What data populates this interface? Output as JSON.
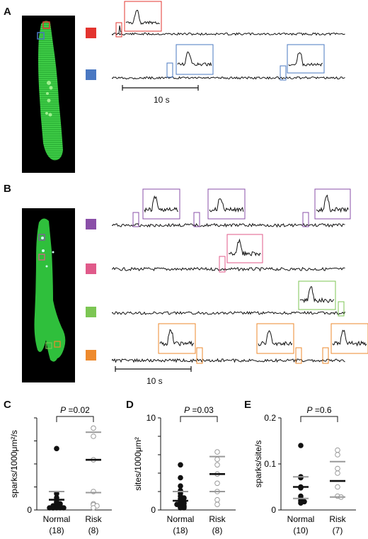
{
  "panels": {
    "A": "A",
    "B": "B",
    "C": "C",
    "D": "D",
    "E": "E"
  },
  "scale_bar": {
    "a": "10 s",
    "b": "10 s"
  },
  "colors": {
    "red": "#e3342f",
    "blue": "#4a78c2",
    "purple": "#8a4fa8",
    "pink": "#e05a8a",
    "green": "#7cc653",
    "orange": "#ee8a2d",
    "cell": "#2fbf3c"
  },
  "chart_data": [
    {
      "type": "scatter",
      "panel": "C",
      "ylabel": "sparks/1000μm²/s",
      "yticks": [
        "0",
        "",
        "",
        "",
        ""
      ],
      "ylim": [
        0,
        4.5
      ],
      "categories": [
        "Normal",
        "Risk"
      ],
      "counts": [
        "(18)",
        "(8)"
      ],
      "p_value_text": "=0.02",
      "p_label": "P",
      "normal": {
        "mean": 0.5,
        "sd_upper": 0.9,
        "points": [
          3.0,
          0.8,
          0.6,
          0.5,
          0.4,
          0.35,
          0.3,
          0.25,
          0.2,
          0.2,
          0.15,
          0.15,
          0.1,
          0.1,
          0.1,
          0.05,
          0.05,
          0.0
        ]
      },
      "risk": {
        "mean": 2.45,
        "sd_upper": 3.8,
        "sd_lower": 0.85,
        "points": [
          4.0,
          3.6,
          2.45,
          0.9,
          0.3,
          0.25,
          0.2,
          0.1
        ]
      }
    },
    {
      "type": "scatter",
      "panel": "D",
      "ylabel": "sites/1000μm²",
      "yticks": [
        "0",
        "",
        "",
        "",
        "",
        "10"
      ],
      "ylim": [
        0,
        10
      ],
      "categories": [
        "Normal",
        "Risk"
      ],
      "counts": [
        "(18)",
        "(8)"
      ],
      "p_value_text": "=0.03",
      "p_label": "P",
      "normal": {
        "mean": 1.0,
        "sd_upper": 2.0,
        "points": [
          4.9,
          3.5,
          2.6,
          2.1,
          1.8,
          1.5,
          1.3,
          1.2,
          1.0,
          0.9,
          0.8,
          0.7,
          0.6,
          0.5,
          0.4,
          0.3,
          0.2,
          0.1
        ]
      },
      "risk": {
        "mean": 3.9,
        "sd_upper": 5.8,
        "sd_lower": 2.0,
        "points": [
          6.3,
          5.5,
          4.9,
          3.9,
          2.9,
          2.0,
          1.1,
          0.6
        ]
      }
    },
    {
      "type": "scatter",
      "panel": "E",
      "ylabel": "sparks/site/s",
      "yticks": [
        "0",
        "0.1",
        "0.2"
      ],
      "ylim": [
        0,
        0.2
      ],
      "categories": [
        "Normal",
        "Risk"
      ],
      "counts": [
        "(10)",
        "(7)"
      ],
      "p_value_text": "=0.6",
      "p_label": "P",
      "normal": {
        "mean": 0.05,
        "sd_upper": 0.072,
        "sd_lower": 0.025,
        "points": [
          0.14,
          0.072,
          0.07,
          0.05,
          0.048,
          0.03,
          0.025,
          0.02,
          0.018,
          0.015
        ]
      },
      "risk": {
        "mean": 0.063,
        "sd_upper": 0.105,
        "sd_lower": 0.028,
        "points": [
          0.13,
          0.12,
          0.09,
          0.08,
          0.05,
          0.03,
          0.028
        ]
      }
    }
  ]
}
